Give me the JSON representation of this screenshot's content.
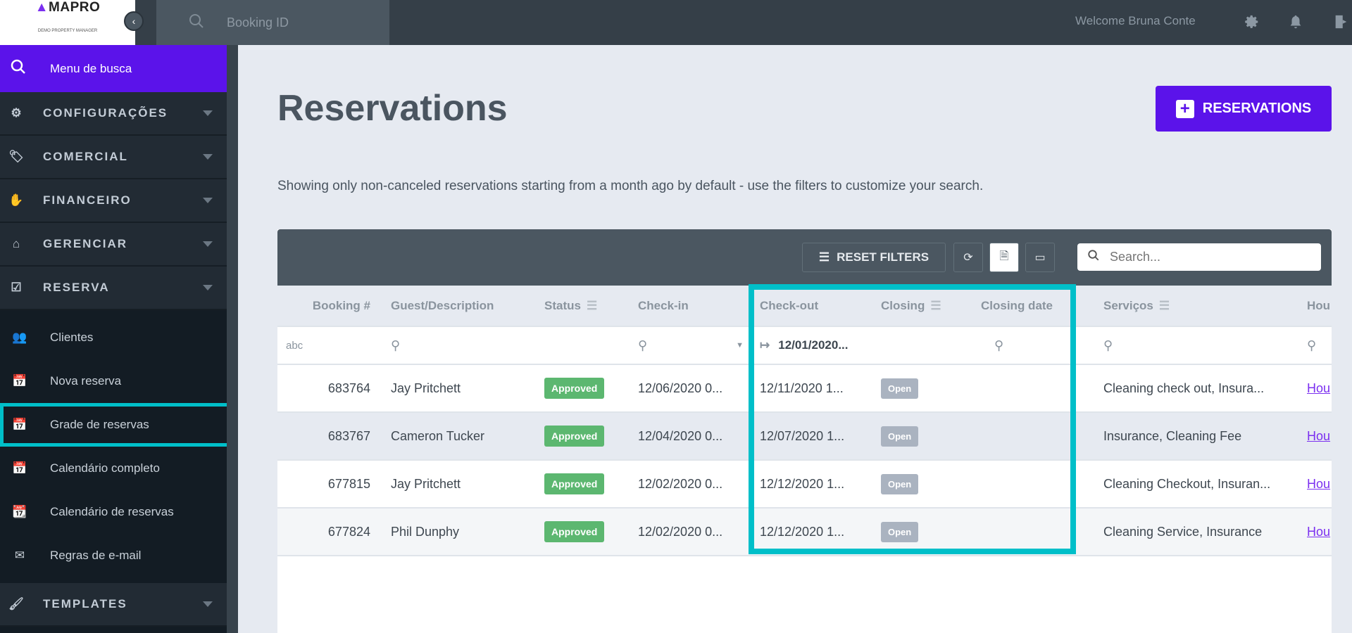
{
  "topbar": {
    "logo_text": "MAPRO",
    "logo_sub": "DEMO PROPERTY MANAGER",
    "booking_search_placeholder": "Booking ID",
    "welcome": "Welcome Bruna Conte"
  },
  "sidebar": {
    "search_label": "Menu de busca",
    "sections": [
      {
        "label": "CONFIGURAÇÕES",
        "icon": "gear-icon"
      },
      {
        "label": "COMERCIAL",
        "icon": "tag-icon"
      },
      {
        "label": "FINANCEIRO",
        "icon": "hand-coins-icon"
      },
      {
        "label": "GERENCIAR",
        "icon": "house-gear-icon"
      },
      {
        "label": "RESERVA",
        "icon": "calendar-check-icon"
      }
    ],
    "reserva_items": [
      {
        "label": "Clientes",
        "icon": "users-icon"
      },
      {
        "label": "Nova reserva",
        "icon": "calendar-plus-icon"
      },
      {
        "label": "Grade de reservas",
        "icon": "calendar-search-icon",
        "highlighted": true
      },
      {
        "label": "Calendário completo",
        "icon": "calendar-search-icon"
      },
      {
        "label": "Calendário de reservas",
        "icon": "calendar-icon"
      },
      {
        "label": "Regras de e-mail",
        "icon": "mail-alert-icon"
      }
    ],
    "templates_label": "TEMPLATES"
  },
  "main": {
    "title": "Reservations",
    "add_button": "RESERVATIONS",
    "description": "Showing only non-canceled reservations starting from a month ago by default - use the filters to customize your search."
  },
  "table": {
    "reset_filters": "RESET FILTERS",
    "search_placeholder": "Search...",
    "columns": [
      "Booking #",
      "Guest/Description",
      "Status",
      "Check-in",
      "Check-out",
      "Closing",
      "Closing date",
      "Serviços",
      "Hou"
    ],
    "filters": {
      "booking": "abc",
      "checkout": "12/01/2020..."
    },
    "rows": [
      {
        "booking": "683764",
        "guest": "Jay Pritchett",
        "status": "Approved",
        "checkin": "12/06/2020 0...",
        "checkout": "12/11/2020 1...",
        "closing": "Open",
        "closing_date": "",
        "services": "Cleaning check out, Insura...",
        "house": "Hou"
      },
      {
        "booking": "683767",
        "guest": "Cameron Tucker",
        "status": "Approved",
        "checkin": "12/04/2020 0...",
        "checkout": "12/07/2020 1...",
        "closing": "Open",
        "closing_date": "",
        "services": "Insurance, Cleaning Fee",
        "house": "Hou"
      },
      {
        "booking": "677815",
        "guest": "Jay Pritchett",
        "status": "Approved",
        "checkin": "12/02/2020 0...",
        "checkout": "12/12/2020 1...",
        "closing": "Open",
        "closing_date": "",
        "services": "Cleaning Checkout, Insuran...",
        "house": "Hou"
      },
      {
        "booking": "677824",
        "guest": "Phil Dunphy",
        "status": "Approved",
        "checkin": "12/02/2020 0...",
        "checkout": "12/12/2020 1...",
        "closing": "Open",
        "closing_date": "",
        "services": "Cleaning Service, Insurance",
        "house": "Hou"
      }
    ]
  },
  "colors": {
    "accent": "#5b13ea",
    "highlight": "#00bfc9",
    "approved": "#5cb770",
    "open": "#aab3c0"
  }
}
